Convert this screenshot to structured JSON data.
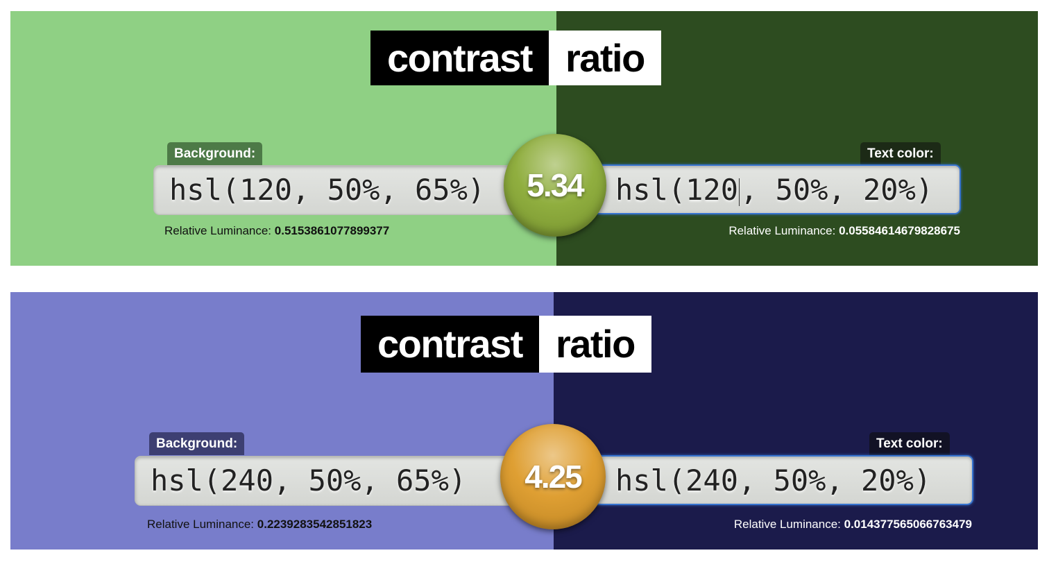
{
  "panels": [
    {
      "logo": {
        "word1": "contrast",
        "word2": "ratio"
      },
      "background": {
        "label": "Background:",
        "value": "hsl(120, 50%, 65%)",
        "luminance_label": "Relative Luminance: ",
        "luminance_value": "0.5153861077899377",
        "color": "#8fd084"
      },
      "text_color": {
        "label": "Text color:",
        "value_before_caret": "hsl(120",
        "value_after_caret": ", 50%, 20%)",
        "luminance_label": "Relative Luminance: ",
        "luminance_value": "0.05584614679828675",
        "color": "#2d4c20"
      },
      "ratio": "5.34",
      "ratio_color": "#8aaa35",
      "tag_bg_color": "#4d7a47",
      "tag_text_color": "#1c2a16"
    },
    {
      "logo": {
        "word1": "contrast",
        "word2": "ratio"
      },
      "background": {
        "label": "Background:",
        "value": "hsl(240, 50%, 65%)",
        "luminance_label": "Relative Luminance: ",
        "luminance_value": "0.2239283542851823",
        "color": "#787dcb"
      },
      "text_color": {
        "label": "Text color:",
        "value": "hsl(240, 50%, 20%)",
        "luminance_label": "Relative Luminance: ",
        "luminance_value": "0.014377565066763479",
        "color": "#1b1b4b"
      },
      "ratio": "4.25",
      "ratio_color": "#dd9a28",
      "tag_bg_color": "#3d3f72",
      "tag_text_color": "#121225"
    }
  ]
}
